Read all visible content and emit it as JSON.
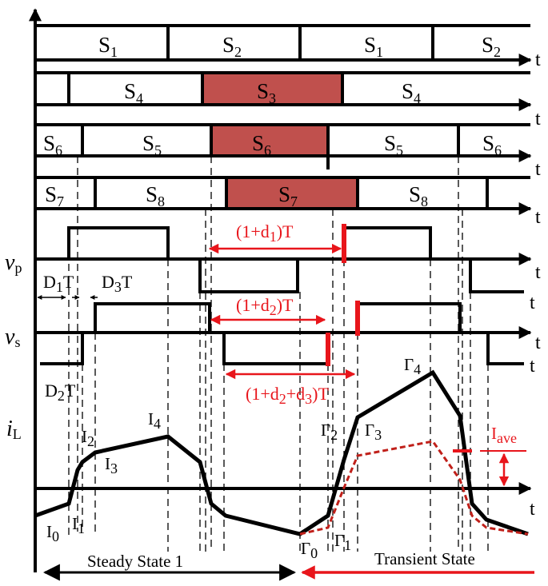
{
  "colors": {
    "line": "#000000",
    "accent": "#e8151b",
    "fill": "#c0504d",
    "grid": "#000000"
  },
  "gates": {
    "row1": [
      "S",
      "1",
      "S",
      "2",
      "S",
      "1",
      "S",
      "2"
    ],
    "row2": [
      "S",
      "4",
      "S",
      "3",
      "S",
      "4"
    ],
    "row3": [
      "S",
      "6",
      "S",
      "5",
      "S",
      "6",
      "S",
      "5",
      "S",
      "6"
    ],
    "row4": [
      "S",
      "7",
      "S",
      "8",
      "S",
      "7",
      "S",
      "8"
    ]
  },
  "axis_t": "t",
  "vp": {
    "sym": "v",
    "sub": "p"
  },
  "vs": {
    "sym": "v",
    "sub": "s"
  },
  "il": {
    "sym": "i",
    "sub": "L"
  },
  "dims": {
    "d1": {
      "a": "(1+d",
      "s": "1",
      "b": ")T"
    },
    "d2": {
      "a": "(1+d",
      "s": "2",
      "b": ")T"
    },
    "d23": {
      "a": "(1+d",
      "s1": "2",
      "m": "+d",
      "s2": "3",
      "b": ")T"
    },
    "D1": {
      "a": "D",
      "s": "1",
      "b": "T"
    },
    "D3": {
      "a": "D",
      "s": "3",
      "b": "T"
    },
    "D2": {
      "a": "D",
      "s": "2",
      "b": "T"
    }
  },
  "currents": {
    "I0": {
      "a": "I",
      "s": "0"
    },
    "I1": {
      "a": "I",
      "s": "1"
    },
    "I2": {
      "a": "I",
      "s": "2"
    },
    "I3": {
      "a": "I",
      "s": "3"
    },
    "I4": {
      "a": "I",
      "s": "4"
    },
    "G0": {
      "a": "Γ",
      "s": "0"
    },
    "G1": {
      "a": "Γ",
      "s": "1"
    },
    "G2": {
      "a": "Γ",
      "s": "2"
    },
    "G3": {
      "a": "Γ",
      "s": "3"
    },
    "G4": {
      "a": "Γ",
      "s": "4"
    },
    "Iave": {
      "a": "I",
      "s": "ave"
    }
  },
  "states": {
    "steady": "Steady State 1",
    "transient": "Transient State"
  }
}
